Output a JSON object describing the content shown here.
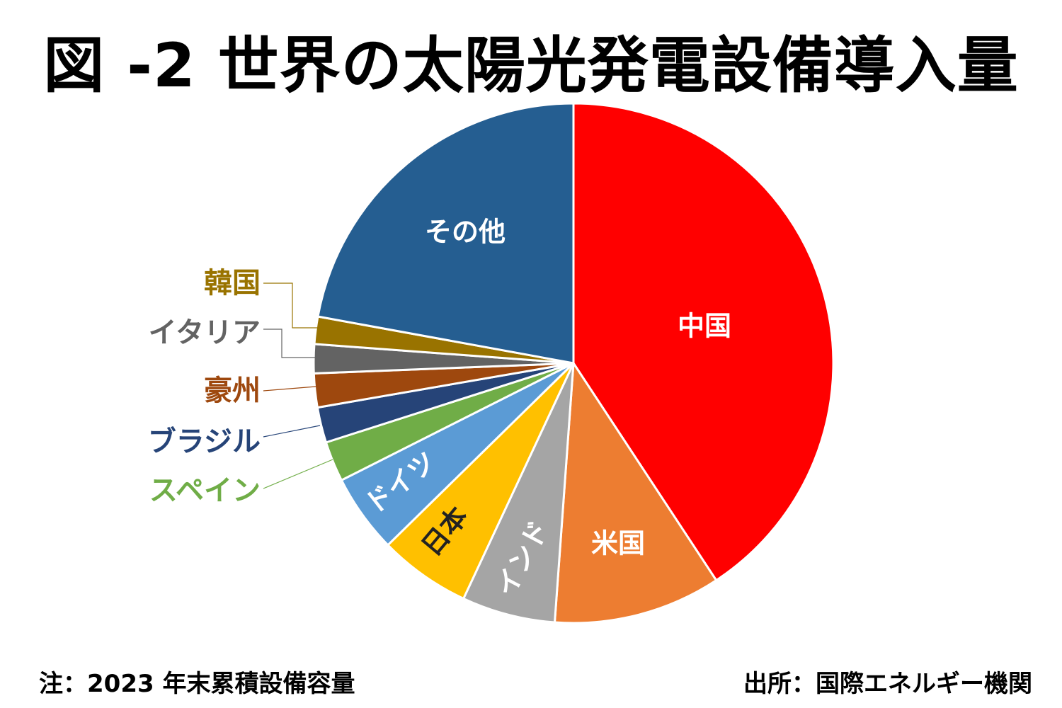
{
  "chart_data": {
    "type": "pie",
    "title": "図 -2 世界の太陽光発電設備導入量",
    "unit": "share of cumulative capacity (%), estimated from slice angles",
    "start_angle": "top, clockwise",
    "slices": [
      {
        "label": "中国",
        "value": 40.7,
        "color": "#FF0000",
        "label_position": "inside",
        "label_color": "#FFFFFF"
      },
      {
        "label": "米国",
        "value": 10.4,
        "color": "#ED7D31",
        "label_position": "inside",
        "label_color": "#FFFFFF"
      },
      {
        "label": "インド",
        "value": 5.8,
        "color": "#A5A5A5",
        "label_position": "inside",
        "label_color": "#FFFFFF"
      },
      {
        "label": "日本",
        "value": 5.7,
        "color": "#FFC000",
        "label_position": "inside",
        "label_color": "#222222"
      },
      {
        "label": "ドイツ",
        "value": 4.9,
        "color": "#5B9BD5",
        "label_position": "inside",
        "label_color": "#FFFFFF"
      },
      {
        "label": "スペイン",
        "value": 2.5,
        "color": "#70AD47",
        "label_position": "outside",
        "label_color": "#70AD47"
      },
      {
        "label": "ブラジル",
        "value": 2.2,
        "color": "#264478",
        "label_position": "outside",
        "label_color": "#264478"
      },
      {
        "label": "豪州",
        "value": 2.1,
        "color": "#9E480E",
        "label_position": "outside",
        "label_color": "#9E480E"
      },
      {
        "label": "イタリア",
        "value": 1.8,
        "color": "#636363",
        "label_position": "outside",
        "label_color": "#636363"
      },
      {
        "label": "韓国",
        "value": 1.7,
        "color": "#997300",
        "label_position": "outside",
        "label_color": "#997300"
      },
      {
        "label": "その他",
        "value": 22.1,
        "color": "#255E91",
        "label_position": "inside",
        "label_color": "#FFFFFF"
      }
    ]
  },
  "notes": {
    "left": "注：2023 年末累積設備容量",
    "right": "出所：国際エネルギー機関"
  }
}
